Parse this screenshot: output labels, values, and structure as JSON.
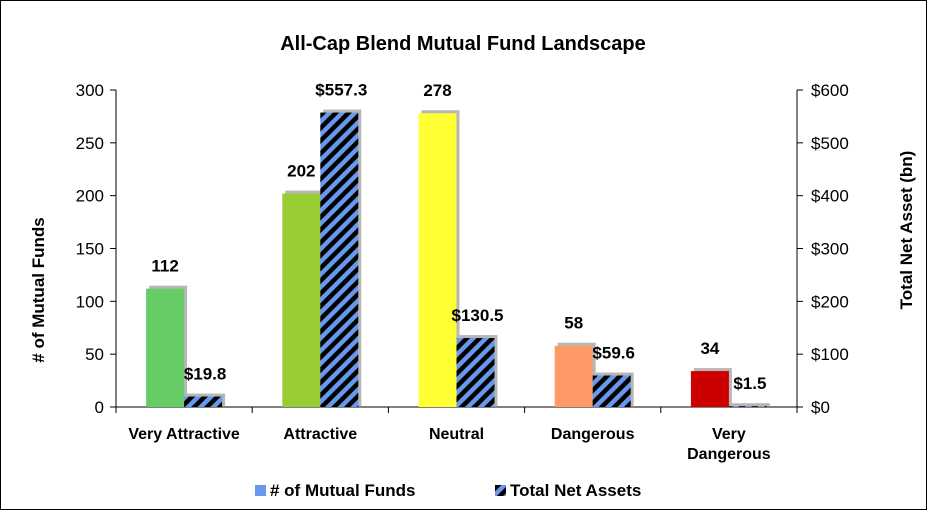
{
  "chart_data": {
    "type": "bar",
    "title": "All-Cap Blend Mutual Fund Landscape",
    "categories": [
      [
        "Very Attractive"
      ],
      [
        "Attractive"
      ],
      [
        "Neutral"
      ],
      [
        "Dangerous"
      ],
      [
        "Very",
        "Dangerous"
      ]
    ],
    "category_colors": [
      "#66cc66",
      "#99cc33",
      "#ffff33",
      "#ff9966",
      "#cc0000"
    ],
    "series": [
      {
        "name": "# of Mutual Funds",
        "axis": "left",
        "values": [
          112,
          202,
          278,
          58,
          34
        ],
        "labels": [
          "112",
          "202",
          "278",
          "58",
          "34"
        ]
      },
      {
        "name": "Total Net Assets",
        "axis": "right",
        "values": [
          19.8,
          557.3,
          130.5,
          59.6,
          1.5
        ],
        "labels": [
          "$19.8",
          "$557.3",
          "$130.5",
          "$59.6",
          "$1.5"
        ],
        "color": "#6699ee",
        "hatch_color": "#000000"
      }
    ],
    "ylabel_left": "# of Mutual Funds",
    "ylabel_right": "Total Net Asset (bn)",
    "ylim_left": [
      0,
      300
    ],
    "ylim_right": [
      0,
      600
    ],
    "yticks_left": [
      "0",
      "50",
      "100",
      "150",
      "200",
      "250",
      "300"
    ],
    "yticks_right": [
      "$0",
      "$100",
      "$200",
      "$300",
      "$400",
      "$500",
      "$600"
    ],
    "legend": [
      "# of Mutual Funds",
      "Total Net Assets"
    ],
    "legend_position": "bottom",
    "grid": false
  }
}
